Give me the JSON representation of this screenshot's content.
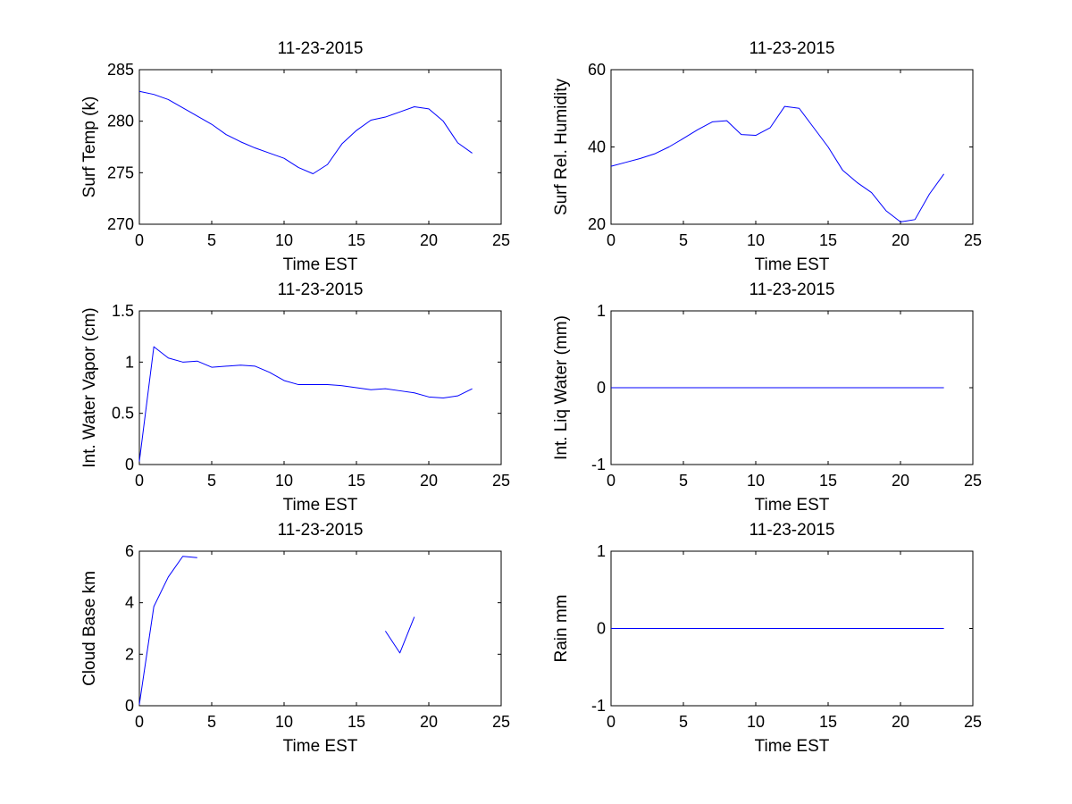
{
  "line_color": "#0000ff",
  "chart_data": [
    {
      "type": "line",
      "title": "11-23-2015",
      "xlabel": "Time EST",
      "ylabel": "Surf Temp (k)",
      "xlim": [
        0,
        25
      ],
      "ylim": [
        270,
        285
      ],
      "xticks": [
        "0",
        "5",
        "10",
        "15",
        "20",
        "25"
      ],
      "yticks": [
        "270",
        "275",
        "280",
        "285"
      ],
      "grid": false,
      "series": [
        {
          "x": [
            0,
            1,
            2,
            3,
            4,
            5,
            6,
            7,
            8,
            9,
            10,
            11,
            12,
            13,
            14,
            15,
            16,
            17,
            18,
            19,
            20,
            21,
            22,
            23
          ],
          "y": [
            282.9,
            282.6,
            282.1,
            281.3,
            280.5,
            279.7,
            278.7,
            278.0,
            277.4,
            276.9,
            276.4,
            275.5,
            274.9,
            275.8,
            277.8,
            279.1,
            280.1,
            280.4,
            280.9,
            281.4,
            281.2,
            280.0,
            277.9,
            276.9
          ]
        }
      ]
    },
    {
      "type": "line",
      "title": "11-23-2015",
      "xlabel": "Time EST",
      "ylabel": "Surf Rel. Humidity",
      "xlim": [
        0,
        25
      ],
      "ylim": [
        20,
        60
      ],
      "xticks": [
        "0",
        "5",
        "10",
        "15",
        "20",
        "25"
      ],
      "yticks": [
        "20",
        "40",
        "60"
      ],
      "grid": false,
      "series": [
        {
          "x": [
            0,
            1,
            2,
            3,
            4,
            5,
            6,
            7,
            8,
            9,
            10,
            11,
            12,
            13,
            14,
            15,
            16,
            17,
            18,
            19,
            20,
            21,
            22,
            23
          ],
          "y": [
            35.0,
            36.0,
            37.0,
            38.2,
            40.0,
            42.2,
            44.5,
            46.5,
            46.8,
            43.2,
            43.0,
            45.0,
            50.5,
            50.0,
            45.0,
            40.0,
            34.0,
            30.8,
            28.2,
            23.5,
            20.6,
            21.2,
            27.8,
            33.0
          ]
        }
      ]
    },
    {
      "type": "line",
      "title": "11-23-2015",
      "xlabel": "Time EST",
      "ylabel": "Int. Water Vapor (cm)",
      "xlim": [
        0,
        25
      ],
      "ylim": [
        0,
        1.5
      ],
      "xticks": [
        "0",
        "5",
        "10",
        "15",
        "20",
        "25"
      ],
      "yticks": [
        "0",
        "0.5",
        "1",
        "1.5"
      ],
      "grid": false,
      "series": [
        {
          "x": [
            0,
            1,
            2,
            3,
            4,
            5,
            6,
            7,
            8,
            9,
            10,
            11,
            12,
            13,
            14,
            15,
            16,
            17,
            18,
            19,
            20,
            21,
            22,
            23
          ],
          "y": [
            0.03,
            1.15,
            1.04,
            1.0,
            1.01,
            0.95,
            0.96,
            0.97,
            0.96,
            0.9,
            0.82,
            0.78,
            0.78,
            0.78,
            0.77,
            0.75,
            0.73,
            0.74,
            0.72,
            0.7,
            0.66,
            0.65,
            0.67,
            0.74
          ]
        }
      ]
    },
    {
      "type": "line",
      "title": "11-23-2015",
      "xlabel": "Time EST",
      "ylabel": "Int. Liq Water (mm)",
      "xlim": [
        0,
        25
      ],
      "ylim": [
        -1,
        1
      ],
      "xticks": [
        "0",
        "5",
        "10",
        "15",
        "20",
        "25"
      ],
      "yticks": [
        "-1",
        "0",
        "1"
      ],
      "grid": false,
      "series": [
        {
          "x": [
            0,
            23
          ],
          "y": [
            0,
            0
          ]
        }
      ]
    },
    {
      "type": "line",
      "title": "11-23-2015",
      "xlabel": "Time EST",
      "ylabel": "Cloud Base km",
      "xlim": [
        0,
        25
      ],
      "ylim": [
        0,
        6
      ],
      "xticks": [
        "0",
        "5",
        "10",
        "15",
        "20",
        "25"
      ],
      "yticks": [
        "0",
        "2",
        "4",
        "6"
      ],
      "grid": false,
      "series": [
        {
          "x": [
            0,
            1,
            2,
            3,
            4
          ],
          "y": [
            0.05,
            3.85,
            5.0,
            5.8,
            5.75
          ]
        },
        {
          "x": [
            17,
            18,
            19
          ],
          "y": [
            2.9,
            2.05,
            3.45
          ]
        }
      ]
    },
    {
      "type": "line",
      "title": "11-23-2015",
      "xlabel": "Time EST",
      "ylabel": "Rain mm",
      "xlim": [
        0,
        25
      ],
      "ylim": [
        -1,
        1
      ],
      "xticks": [
        "0",
        "5",
        "10",
        "15",
        "20",
        "25"
      ],
      "yticks": [
        "-1",
        "0",
        "1"
      ],
      "grid": false,
      "series": [
        {
          "x": [
            0,
            23
          ],
          "y": [
            0,
            0
          ]
        }
      ]
    }
  ]
}
